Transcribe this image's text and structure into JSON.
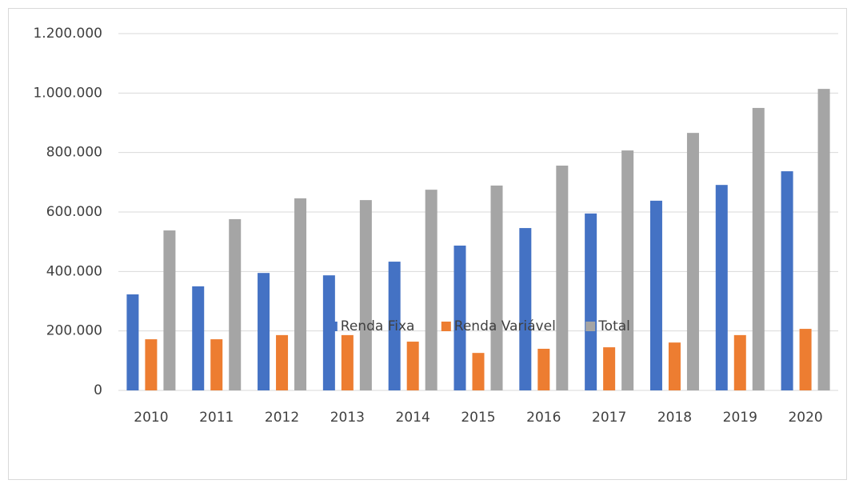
{
  "chart_data": {
    "type": "bar",
    "categories": [
      "2010",
      "2011",
      "2012",
      "2013",
      "2014",
      "2015",
      "2016",
      "2017",
      "2018",
      "2019",
      "2020"
    ],
    "series": [
      {
        "name": "Renda Fixa",
        "color": "#4472c4",
        "values": [
          323000,
          350000,
          395000,
          387000,
          433000,
          487000,
          546000,
          595000,
          638000,
          691000,
          737000
        ]
      },
      {
        "name": "Renda Variável",
        "color": "#ed7d31",
        "values": [
          172000,
          172000,
          186000,
          186000,
          164000,
          126000,
          140000,
          145000,
          161000,
          186000,
          207000
        ]
      },
      {
        "name": "Total",
        "color": "#a5a5a5",
        "values": [
          538000,
          576000,
          646000,
          640000,
          675000,
          689000,
          756000,
          807000,
          866000,
          950000,
          1014000
        ]
      }
    ],
    "ylim": [
      0,
      1200000
    ],
    "yticks": [
      0,
      {
        "value": 200000,
        "label": "200.000"
      },
      {
        "value": 400000,
        "label": "400.000"
      },
      {
        "value": 600000,
        "label": "600.000"
      },
      {
        "value": 800000,
        "label": "800.000"
      },
      {
        "value": 1000000,
        "label": "1.000.000"
      },
      {
        "value": 1200000,
        "label": "1.200.000"
      }
    ],
    "grid": true,
    "legend": "bottom"
  }
}
